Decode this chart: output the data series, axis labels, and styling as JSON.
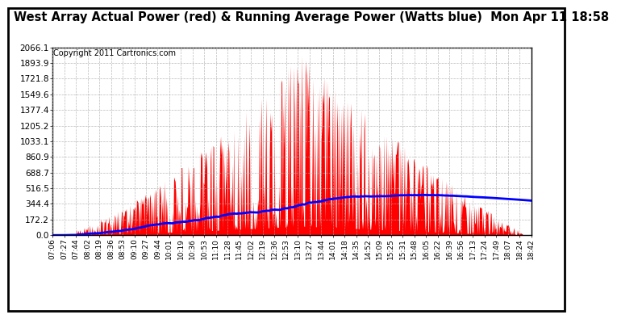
{
  "title": "West Array Actual Power (red) & Running Average Power (Watts blue)  Mon Apr 11 18:58",
  "copyright": "Copyright 2011 Cartronics.com",
  "ylabel_values": [
    2066.1,
    1893.9,
    1721.8,
    1549.6,
    1377.4,
    1205.2,
    1033.1,
    860.9,
    688.7,
    516.5,
    344.4,
    172.2,
    0.0
  ],
  "ylim": [
    0,
    2066.1
  ],
  "background_color": "#ffffff",
  "plot_bg_color": "#ffffff",
  "bar_color": "#ff0000",
  "avg_color": "#0000ff",
  "grid_color": "#aaaaaa",
  "title_fontsize": 10.5,
  "copyright_fontsize": 7,
  "x_labels": [
    "07:06",
    "07:27",
    "07:44",
    "08:02",
    "08:19",
    "08:36",
    "08:53",
    "09:10",
    "09:27",
    "09:44",
    "10:01",
    "10:19",
    "10:36",
    "10:53",
    "11:10",
    "11:28",
    "11:45",
    "12:02",
    "12:19",
    "12:36",
    "12:53",
    "13:10",
    "13:27",
    "13:44",
    "14:01",
    "14:18",
    "14:35",
    "14:52",
    "15:09",
    "15:25",
    "15:31",
    "15:48",
    "16:05",
    "16:22",
    "16:39",
    "16:56",
    "17:13",
    "17:24",
    "17:49",
    "18:07",
    "18:24",
    "18:42"
  ]
}
